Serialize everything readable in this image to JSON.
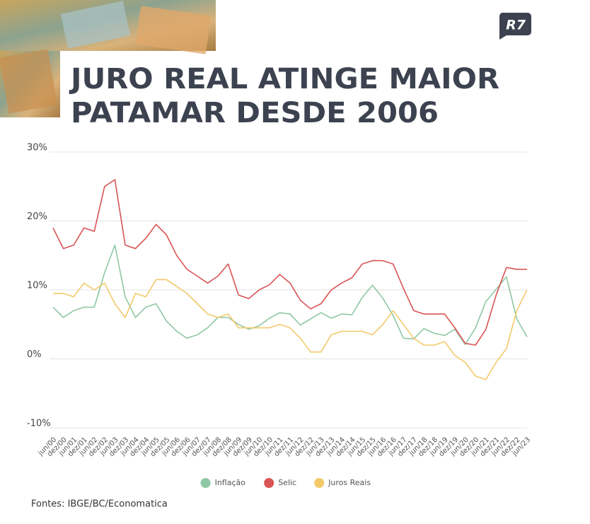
{
  "chart_data": {
    "type": "line",
    "logo": "R7",
    "title_lines": [
      "JURO REAL ATINGE MAIOR",
      "PATAMAR DESDE 2006"
    ],
    "source": "Fontes:  IBGE/BC/Economatica",
    "categories": [
      "jun/00",
      "dez/00",
      "jun/01",
      "dez/01",
      "jun/02",
      "dez/02",
      "jun/03",
      "dez/03",
      "jun/04",
      "dez/04",
      "jun/05",
      "dez/05",
      "jun/06",
      "dez/06",
      "jun/07",
      "dez/07",
      "jun/08",
      "dez/08",
      "jun/09",
      "dez/09",
      "jun/10",
      "dez/10",
      "jun/11",
      "dez/11",
      "jun/12",
      "dez/12",
      "jun/13",
      "dez/13",
      "jun/14",
      "dez/14",
      "jun/15",
      "dez/15",
      "jun/16",
      "dez/16",
      "jun/17",
      "dez/17",
      "jun/18",
      "dez/18",
      "jun/19",
      "dez/19",
      "jun/20",
      "dez/20",
      "jun/21",
      "dez/21",
      "jun/22",
      "dez/22",
      "jun/23"
    ],
    "series": [
      {
        "name": "Inflação",
        "color": "#8fc7a4",
        "values": [
          7.5,
          6,
          7,
          7.5,
          7.5,
          12.5,
          16.5,
          9,
          6,
          7.5,
          8,
          5.5,
          4,
          3,
          3.5,
          4.5,
          6,
          6,
          5,
          4.3,
          4.8,
          5.9,
          6.7,
          6.5,
          4.9,
          5.8,
          6.7,
          5.9,
          6.5,
          6.4,
          8.9,
          10.7,
          8.8,
          6.3,
          3,
          2.9,
          4.4,
          3.7,
          3.4,
          4.3,
          2.1,
          4.5,
          8.3,
          10.1,
          11.9,
          5.8,
          3.2
        ]
      },
      {
        "name": "Selic",
        "color": "#d95454",
        "values": [
          19,
          16,
          16.5,
          19,
          18.5,
          25,
          26,
          16.5,
          16,
          17.5,
          19.5,
          18,
          15,
          13,
          12,
          11,
          12,
          13.75,
          9.25,
          8.75,
          10,
          10.75,
          12.25,
          11,
          8.5,
          7.25,
          8,
          10,
          11,
          11.75,
          13.75,
          14.25,
          14.25,
          13.75,
          10.25,
          7,
          6.5,
          6.5,
          6.5,
          4.5,
          2.25,
          2,
          4.25,
          9.25,
          13.25,
          13,
          13
        ]
      },
      {
        "name": "Juros Reais",
        "color": "#f3c96a",
        "values": [
          9.5,
          9.5,
          9,
          11,
          10,
          11,
          8,
          6,
          9.5,
          9,
          11.5,
          11.5,
          10.5,
          9.5,
          8,
          6.5,
          6,
          6.5,
          4.5,
          4.5,
          4.5,
          4.5,
          5,
          4.5,
          3,
          1,
          1,
          3.5,
          4,
          4,
          4,
          3.5,
          5,
          7,
          5,
          3,
          2,
          2,
          2.5,
          0.5,
          -0.5,
          -2.5,
          -3,
          -0.5,
          1.5,
          7,
          10
        ]
      }
    ],
    "ylim": [
      -10,
      30
    ],
    "yticks": [
      {
        "value": -10,
        "label": "-10%"
      },
      {
        "value": 0,
        "label": "0%"
      },
      {
        "value": 10,
        "label": "10%"
      },
      {
        "value": 20,
        "label": "20%"
      },
      {
        "value": 30,
        "label": "30%"
      }
    ],
    "grid": true
  }
}
